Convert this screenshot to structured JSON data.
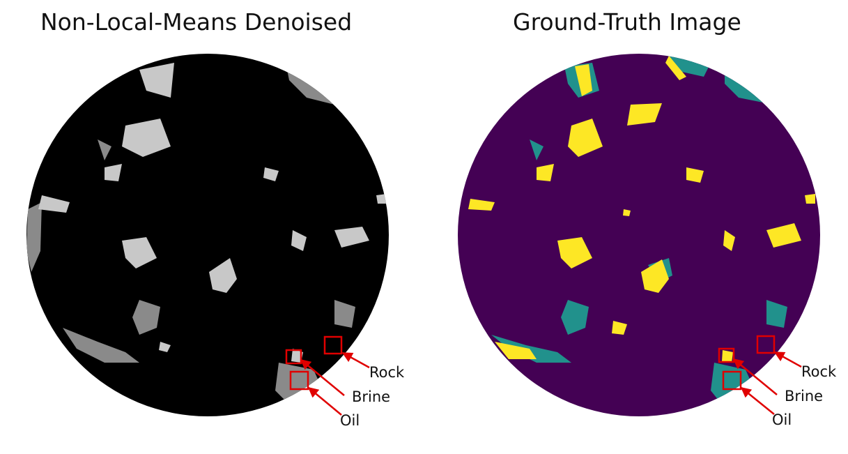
{
  "panels": [
    {
      "title": "Non-Local-Means Denoised",
      "labels": {
        "rock": "Rock",
        "brine": "Brine",
        "oil": "Oil"
      }
    },
    {
      "title": "Ground-Truth Image",
      "labels": {
        "rock": "Rock",
        "brine": "Brine",
        "oil": "Oil"
      }
    }
  ],
  "colors": {
    "left_background": "#000000",
    "left_brine": "#c8c8c8",
    "left_oil": "#8a8a8a",
    "right_background": "#440154",
    "right_brine": "#fde725",
    "right_oil": "#21918c",
    "annotation": "#e00000"
  }
}
